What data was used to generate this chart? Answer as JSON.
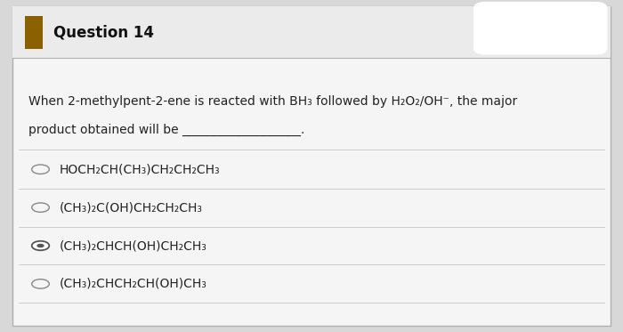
{
  "title": "Question 14",
  "question_line1": "When 2-methylpent-2-ene is reacted with BH₃ followed by H₂O₂/OH⁻, the major",
  "question_line2": "product obtained will be ___________________.",
  "options": [
    {
      "text": "HOCH₂CH(CH₃)CH₂CH₂CH₃",
      "selected": false
    },
    {
      "text": "(CH₃)₂C(OH)CH₂CH₂CH₃",
      "selected": false
    },
    {
      "text": "(CH₃)₂CHCH(OH)CH₂CH₃",
      "selected": true
    },
    {
      "text": "(CH₃)₂CHCH₂CH(OH)CH₃",
      "selected": false
    }
  ],
  "outer_bg": "#d8d8d8",
  "card_bg": "#f5f5f5",
  "card_border": "#b0b0b0",
  "header_bg": "#ebebeb",
  "header_border": "#b0b0b0",
  "icon_color": "#8B6000",
  "title_color": "#111111",
  "body_color": "#222222",
  "option_color": "#222222",
  "divider_color": "#cccccc",
  "radio_stroke": "#888888",
  "radio_selected_fill": "#555555",
  "tab_color": "#ffffff",
  "font_title": 12,
  "font_body": 10,
  "font_option": 10
}
